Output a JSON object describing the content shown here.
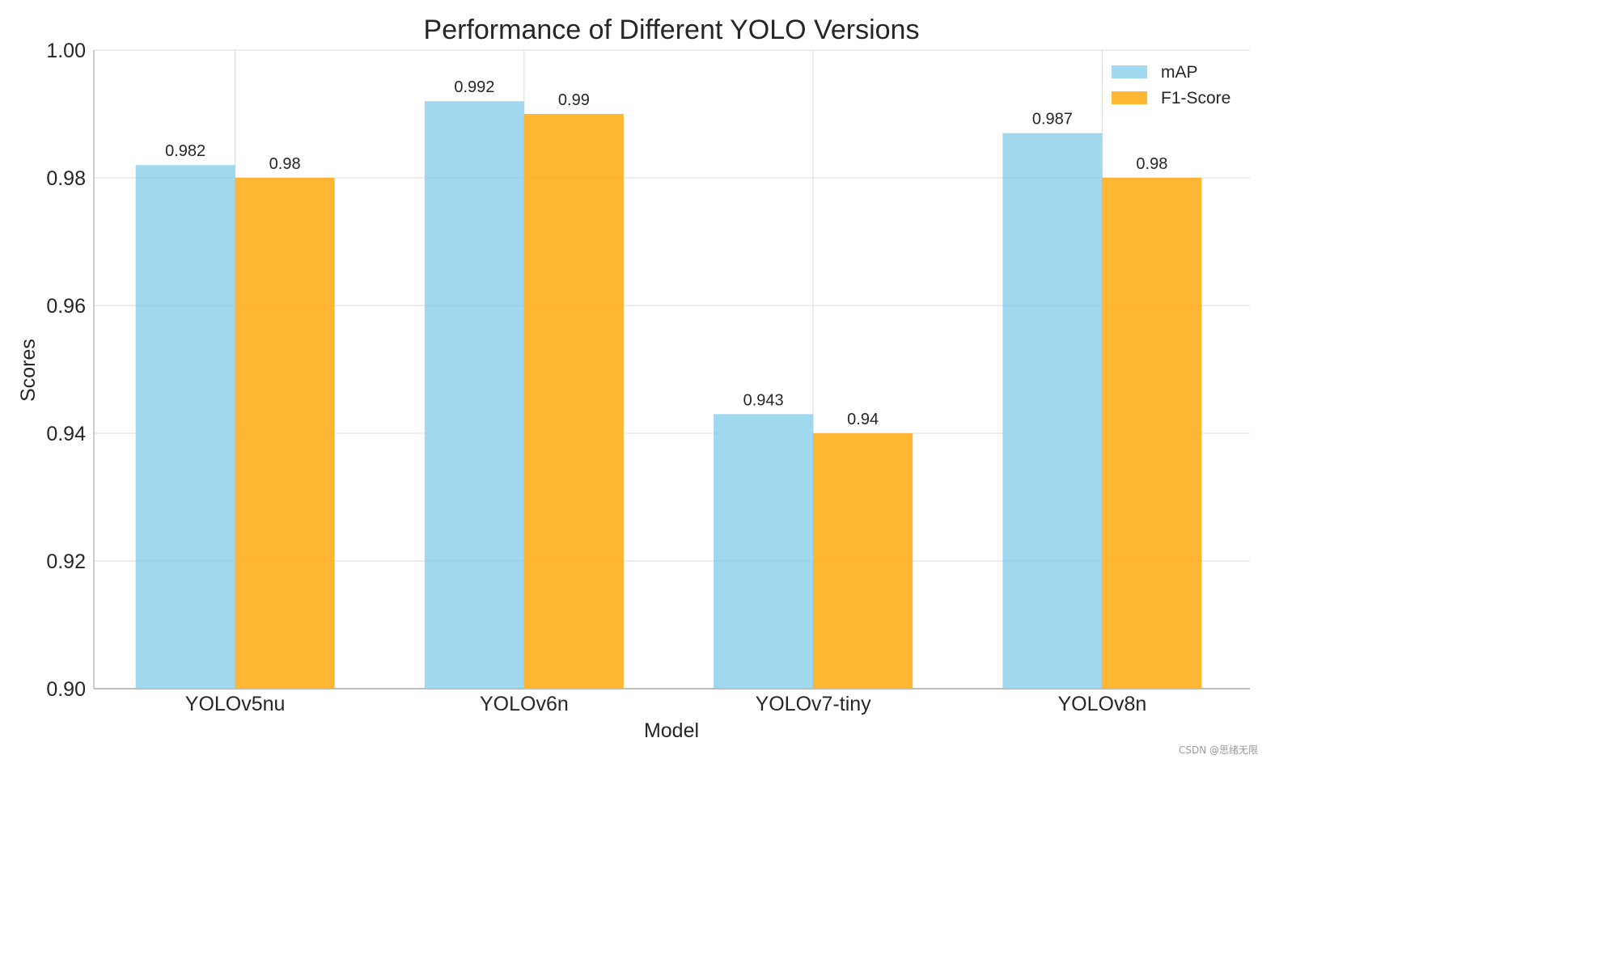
{
  "chart_data": {
    "type": "bar",
    "title": "Performance of Different YOLO Versions",
    "xlabel": "Model",
    "ylabel": "Scores",
    "categories": [
      "YOLOv5nu",
      "YOLOv6n",
      "YOLOv7-tiny",
      "YOLOv8n"
    ],
    "series": [
      {
        "name": "mAP",
        "color": "#87CEEB",
        "values": [
          0.982,
          0.992,
          0.943,
          0.987
        ],
        "labels": [
          "0.982",
          "0.992",
          "0.943",
          "0.987"
        ]
      },
      {
        "name": "F1-Score",
        "color": "#FFA500",
        "values": [
          0.98,
          0.99,
          0.94,
          0.98
        ],
        "labels": [
          "0.98",
          "0.99",
          "0.94",
          "0.98"
        ]
      }
    ],
    "ylim": [
      0.9,
      1.0
    ],
    "yticks": [
      "0.90",
      "0.92",
      "0.94",
      "0.96",
      "0.98",
      "1.00"
    ],
    "grid": true,
    "legend_position": "top-right"
  },
  "watermark": "CSDN @思绪无限"
}
